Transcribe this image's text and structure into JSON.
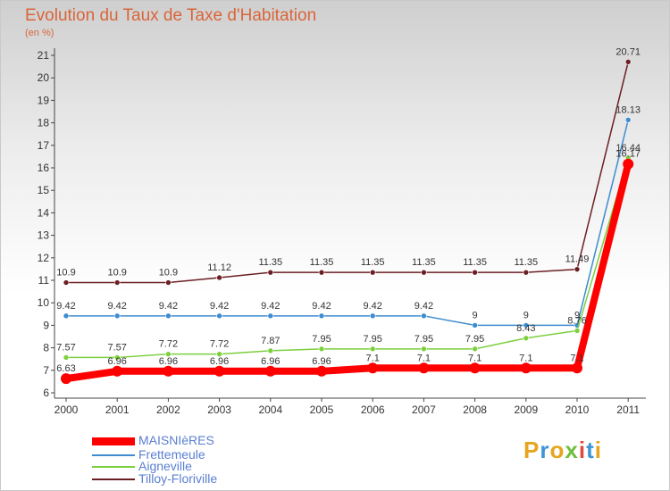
{
  "title": "Evolution du Taux de Taxe d'Habitation",
  "subtitle": "(en %)",
  "logo": {
    "letters": [
      "P",
      "r",
      "o",
      "x",
      "i",
      "t",
      "i"
    ],
    "colors": [
      "#e6a51f",
      "#3c95d6",
      "#e6a51f",
      "#6fbf3d",
      "#e04a3c",
      "#3c95d6",
      "#e6a51f"
    ]
  },
  "chart_data": {
    "type": "line",
    "title": "Evolution du Taux de Taxe d'Habitation",
    "ylabel": "(en %)",
    "x": [
      "2000",
      "2001",
      "2002",
      "2003",
      "2004",
      "2005",
      "2006",
      "2007",
      "2008",
      "2009",
      "2010",
      "2011"
    ],
    "ylim": [
      6,
      21
    ],
    "yticks": [
      "6",
      "7",
      "8",
      "9",
      "10",
      "11",
      "12",
      "13",
      "14",
      "15",
      "16",
      "17",
      "18",
      "19",
      "20",
      "21"
    ],
    "grid": false,
    "legend": "bottom-left",
    "series": [
      {
        "name": "Tilloy-Floriville",
        "color": "#6b1f24",
        "values": [
          10.9,
          10.9,
          10.9,
          11.12,
          11.35,
          11.35,
          11.35,
          11.35,
          11.35,
          11.35,
          11.49,
          20.71
        ],
        "labels": [
          "10.9",
          "10.9",
          "10.9",
          "11.12",
          "11.35",
          "11.35",
          "11.35",
          "11.35",
          "11.35",
          "11.35",
          "11.49",
          "20.71"
        ]
      },
      {
        "name": "Frettemeule",
        "color": "#3d8ccf",
        "values": [
          9.42,
          9.42,
          9.42,
          9.42,
          9.42,
          9.42,
          9.42,
          9.42,
          9,
          9,
          9,
          18.13
        ],
        "labels": [
          "9.42",
          "9.42",
          "9.42",
          "9.42",
          "9.42",
          "9.42",
          "9.42",
          "9.42",
          "9",
          "9",
          "9",
          "18.13"
        ]
      },
      {
        "name": "Aigneville",
        "color": "#7ccf3d",
        "values": [
          7.57,
          7.57,
          7.72,
          7.72,
          7.87,
          7.95,
          7.95,
          7.95,
          7.95,
          8.43,
          8.76,
          16.44
        ],
        "labels": [
          "7.57",
          "7.57",
          "7.72",
          "7.72",
          "7.87",
          "7.95",
          "7.95",
          "7.95",
          "7.95",
          "8.43",
          "8.76",
          "16.44"
        ]
      },
      {
        "name": "MAISNIèRES",
        "color": "#ff0000",
        "values": [
          6.63,
          6.96,
          6.96,
          6.96,
          6.96,
          6.96,
          7.1,
          7.1,
          7.1,
          7.1,
          7.1,
          16.17
        ],
        "labels": [
          "6.63",
          "6.96",
          "6.96",
          "6.96",
          "6.96",
          "6.96",
          "7.1",
          "7.1",
          "7.1",
          "7.1",
          "7.1",
          "16.17"
        ]
      }
    ],
    "legend_entries": [
      "MAISNIèRES",
      "Frettemeule",
      "Aigneville",
      "Tilloy-Floriville"
    ]
  }
}
